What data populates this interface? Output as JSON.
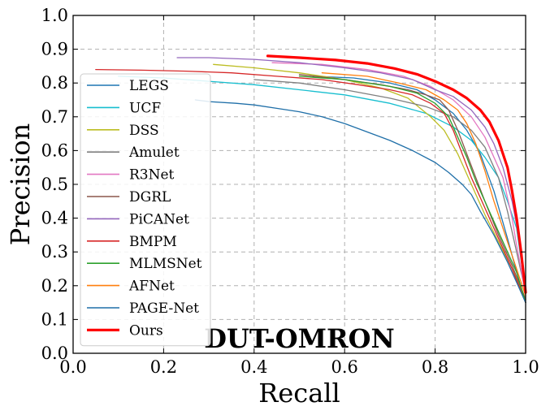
{
  "chart_data": {
    "type": "line",
    "xlabel": "Recall",
    "ylabel": "Precision",
    "xlim": [
      0.0,
      1.0
    ],
    "ylim": [
      0.0,
      1.0
    ],
    "xticks": [
      "0.0",
      "0.2",
      "0.4",
      "0.6",
      "0.8",
      "1.0"
    ],
    "yticks": [
      "0.0",
      "0.1",
      "0.2",
      "0.3",
      "0.4",
      "0.5",
      "0.6",
      "0.7",
      "0.8",
      "0.9",
      "1.0"
    ],
    "grid": true,
    "legend_position": "center-left",
    "annotation": "DUT-OMRON",
    "series": [
      {
        "name": "LEGS",
        "color": "#1f77b4",
        "width": 1.3,
        "points": [
          [
            0.53,
            0.82
          ],
          [
            0.62,
            0.815
          ],
          [
            0.7,
            0.8
          ],
          [
            0.76,
            0.78
          ],
          [
            0.8,
            0.75
          ],
          [
            0.84,
            0.71
          ],
          [
            0.87,
            0.66
          ],
          [
            0.9,
            0.59
          ],
          [
            0.93,
            0.48
          ],
          [
            0.96,
            0.34
          ],
          [
            0.98,
            0.24
          ],
          [
            1.0,
            0.15
          ]
        ]
      },
      {
        "name": "UCF",
        "color": "#17becf",
        "width": 1.3,
        "points": [
          [
            0.1,
            0.82
          ],
          [
            0.2,
            0.815
          ],
          [
            0.3,
            0.805
          ],
          [
            0.4,
            0.795
          ],
          [
            0.5,
            0.78
          ],
          [
            0.6,
            0.765
          ],
          [
            0.7,
            0.74
          ],
          [
            0.78,
            0.71
          ],
          [
            0.84,
            0.67
          ],
          [
            0.88,
            0.63
          ],
          [
            0.91,
            0.58
          ],
          [
            0.94,
            0.52
          ],
          [
            0.96,
            0.45
          ],
          [
            0.98,
            0.37
          ],
          [
            1.0,
            0.18
          ]
        ]
      },
      {
        "name": "DSS",
        "color": "#bcbd22",
        "width": 1.3,
        "points": [
          [
            0.31,
            0.855
          ],
          [
            0.4,
            0.845
          ],
          [
            0.5,
            0.83
          ],
          [
            0.6,
            0.81
          ],
          [
            0.68,
            0.785
          ],
          [
            0.74,
            0.755
          ],
          [
            0.79,
            0.7
          ],
          [
            0.82,
            0.66
          ],
          [
            0.85,
            0.59
          ],
          [
            0.88,
            0.5
          ],
          [
            0.91,
            0.41
          ],
          [
            0.94,
            0.33
          ],
          [
            0.97,
            0.25
          ],
          [
            1.0,
            0.16
          ]
        ]
      },
      {
        "name": "Amulet",
        "color": "#7f7f7f",
        "width": 1.3,
        "points": [
          [
            0.4,
            0.81
          ],
          [
            0.5,
            0.8
          ],
          [
            0.6,
            0.78
          ],
          [
            0.7,
            0.755
          ],
          [
            0.78,
            0.73
          ],
          [
            0.84,
            0.7
          ],
          [
            0.88,
            0.66
          ],
          [
            0.91,
            0.61
          ],
          [
            0.94,
            0.52
          ],
          [
            0.96,
            0.42
          ],
          [
            0.98,
            0.3
          ],
          [
            1.0,
            0.18
          ]
        ]
      },
      {
        "name": "R3Net",
        "color": "#e377c2",
        "width": 1.3,
        "points": [
          [
            0.44,
            0.86
          ],
          [
            0.55,
            0.855
          ],
          [
            0.65,
            0.84
          ],
          [
            0.73,
            0.82
          ],
          [
            0.79,
            0.79
          ],
          [
            0.84,
            0.75
          ],
          [
            0.88,
            0.7
          ],
          [
            0.91,
            0.64
          ],
          [
            0.93,
            0.58
          ],
          [
            0.95,
            0.52
          ],
          [
            0.96,
            0.46
          ],
          [
            0.97,
            0.4
          ],
          [
            0.98,
            0.32
          ],
          [
            0.99,
            0.25
          ],
          [
            1.0,
            0.17
          ]
        ]
      },
      {
        "name": "DGRL",
        "color": "#8c564b",
        "width": 1.3,
        "points": [
          [
            0.5,
            0.825
          ],
          [
            0.6,
            0.81
          ],
          [
            0.68,
            0.795
          ],
          [
            0.74,
            0.78
          ],
          [
            0.78,
            0.765
          ],
          [
            0.81,
            0.75
          ],
          [
            0.83,
            0.72
          ],
          [
            0.85,
            0.66
          ],
          [
            0.87,
            0.59
          ],
          [
            0.89,
            0.52
          ],
          [
            0.91,
            0.45
          ],
          [
            0.94,
            0.35
          ],
          [
            0.97,
            0.26
          ],
          [
            1.0,
            0.16
          ]
        ]
      },
      {
        "name": "PiCANet",
        "color": "#9467bd",
        "width": 1.3,
        "points": [
          [
            0.23,
            0.875
          ],
          [
            0.3,
            0.875
          ],
          [
            0.4,
            0.87
          ],
          [
            0.5,
            0.86
          ],
          [
            0.6,
            0.845
          ],
          [
            0.68,
            0.83
          ],
          [
            0.75,
            0.81
          ],
          [
            0.8,
            0.78
          ],
          [
            0.84,
            0.76
          ],
          [
            0.88,
            0.72
          ],
          [
            0.91,
            0.67
          ],
          [
            0.93,
            0.62
          ],
          [
            0.95,
            0.55
          ],
          [
            0.97,
            0.45
          ],
          [
            0.98,
            0.38
          ],
          [
            0.99,
            0.3
          ],
          [
            1.0,
            0.2
          ]
        ]
      },
      {
        "name": "BMPM",
        "color": "#d62728",
        "width": 1.3,
        "points": [
          [
            0.05,
            0.84
          ],
          [
            0.15,
            0.838
          ],
          [
            0.25,
            0.835
          ],
          [
            0.35,
            0.83
          ],
          [
            0.45,
            0.82
          ],
          [
            0.55,
            0.81
          ],
          [
            0.63,
            0.795
          ],
          [
            0.7,
            0.78
          ],
          [
            0.75,
            0.765
          ],
          [
            0.79,
            0.74
          ],
          [
            0.82,
            0.71
          ],
          [
            0.84,
            0.66
          ],
          [
            0.86,
            0.59
          ],
          [
            0.88,
            0.52
          ],
          [
            0.91,
            0.43
          ],
          [
            0.94,
            0.34
          ],
          [
            0.97,
            0.25
          ],
          [
            1.0,
            0.15
          ]
        ]
      },
      {
        "name": "MLMSNet",
        "color": "#2ca02c",
        "width": 1.3,
        "points": [
          [
            0.5,
            0.82
          ],
          [
            0.6,
            0.81
          ],
          [
            0.7,
            0.79
          ],
          [
            0.76,
            0.77
          ],
          [
            0.8,
            0.74
          ],
          [
            0.83,
            0.7
          ],
          [
            0.85,
            0.64
          ],
          [
            0.87,
            0.58
          ],
          [
            0.89,
            0.51
          ],
          [
            0.92,
            0.42
          ],
          [
            0.95,
            0.33
          ],
          [
            0.98,
            0.24
          ],
          [
            1.0,
            0.15
          ]
        ]
      },
      {
        "name": "AFNet",
        "color": "#ff7f0e",
        "width": 1.3,
        "points": [
          [
            0.55,
            0.83
          ],
          [
            0.65,
            0.82
          ],
          [
            0.72,
            0.8
          ],
          [
            0.78,
            0.78
          ],
          [
            0.82,
            0.75
          ],
          [
            0.85,
            0.72
          ],
          [
            0.87,
            0.68
          ],
          [
            0.89,
            0.62
          ],
          [
            0.91,
            0.54
          ],
          [
            0.93,
            0.45
          ],
          [
            0.95,
            0.37
          ],
          [
            0.97,
            0.29
          ],
          [
            1.0,
            0.17
          ]
        ]
      },
      {
        "name": "PAGE-Net",
        "color": "#1f6fa8",
        "width": 1.3,
        "points": [
          [
            0.27,
            0.75
          ],
          [
            0.3,
            0.745
          ],
          [
            0.36,
            0.74
          ],
          [
            0.4,
            0.735
          ],
          [
            0.45,
            0.725
          ],
          [
            0.5,
            0.715
          ],
          [
            0.55,
            0.7
          ],
          [
            0.6,
            0.68
          ],
          [
            0.65,
            0.655
          ],
          [
            0.7,
            0.63
          ],
          [
            0.75,
            0.6
          ],
          [
            0.8,
            0.565
          ],
          [
            0.83,
            0.535
          ],
          [
            0.86,
            0.5
          ],
          [
            0.88,
            0.47
          ],
          [
            0.9,
            0.42
          ],
          [
            0.93,
            0.35
          ],
          [
            0.96,
            0.27
          ],
          [
            0.98,
            0.21
          ],
          [
            1.0,
            0.15
          ]
        ]
      },
      {
        "name": "Ours",
        "color": "#ff0000",
        "width": 3.2,
        "points": [
          [
            0.43,
            0.88
          ],
          [
            0.5,
            0.875
          ],
          [
            0.58,
            0.868
          ],
          [
            0.65,
            0.858
          ],
          [
            0.71,
            0.843
          ],
          [
            0.76,
            0.826
          ],
          [
            0.8,
            0.805
          ],
          [
            0.84,
            0.78
          ],
          [
            0.87,
            0.755
          ],
          [
            0.9,
            0.72
          ],
          [
            0.92,
            0.685
          ],
          [
            0.94,
            0.63
          ],
          [
            0.96,
            0.55
          ],
          [
            0.97,
            0.48
          ],
          [
            0.98,
            0.4
          ],
          [
            0.99,
            0.3
          ],
          [
            1.0,
            0.18
          ]
        ]
      }
    ]
  }
}
